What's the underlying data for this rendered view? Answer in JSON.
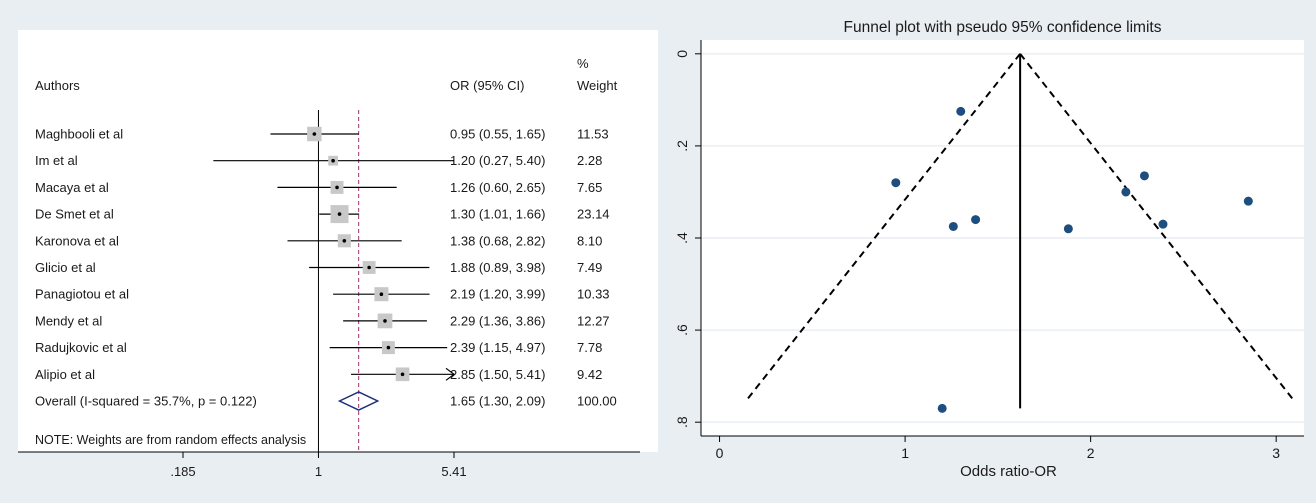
{
  "chart_data": [
    {
      "type": "forest",
      "header": {
        "authors": "Authors",
        "or_ci": "OR (95% CI)",
        "pct": "%",
        "weight": "Weight"
      },
      "studies": [
        {
          "author": "Maghbooli et al",
          "or": 0.95,
          "lo": 0.55,
          "hi": 1.65,
          "label": "0.95 (0.55, 1.65)",
          "weight": 11.53,
          "weight_label": "11.53"
        },
        {
          "author": "Im et al",
          "or": 1.2,
          "lo": 0.27,
          "hi": 5.4,
          "label": "1.20 (0.27, 5.40)",
          "weight": 2.28,
          "weight_label": "2.28"
        },
        {
          "author": "Macaya et al",
          "or": 1.26,
          "lo": 0.6,
          "hi": 2.65,
          "label": "1.26 (0.60, 2.65)",
          "weight": 7.65,
          "weight_label": "7.65"
        },
        {
          "author": "De Smet et al",
          "or": 1.3,
          "lo": 1.01,
          "hi": 1.66,
          "label": "1.30 (1.01, 1.66)",
          "weight": 23.14,
          "weight_label": "23.14"
        },
        {
          "author": "Karonova et al",
          "or": 1.38,
          "lo": 0.68,
          "hi": 2.82,
          "label": "1.38 (0.68, 2.82)",
          "weight": 8.1,
          "weight_label": "8.10"
        },
        {
          "author": "Glicio et al",
          "or": 1.88,
          "lo": 0.89,
          "hi": 3.98,
          "label": "1.88 (0.89, 3.98)",
          "weight": 7.49,
          "weight_label": "7.49"
        },
        {
          "author": "Panagiotou  et al",
          "or": 2.19,
          "lo": 1.2,
          "hi": 3.99,
          "label": "2.19 (1.20, 3.99)",
          "weight": 10.33,
          "weight_label": "10.33"
        },
        {
          "author": "Mendy et al",
          "or": 2.29,
          "lo": 1.36,
          "hi": 3.86,
          "label": "2.29 (1.36, 3.86)",
          "weight": 12.27,
          "weight_label": "12.27"
        },
        {
          "author": "Radujkovic et al",
          "or": 2.39,
          "lo": 1.15,
          "hi": 4.97,
          "label": "2.39 (1.15, 4.97)",
          "weight": 7.78,
          "weight_label": "7.78"
        },
        {
          "author": "Alipio et al",
          "or": 2.85,
          "lo": 1.5,
          "hi": 5.41,
          "label": "2.85 (1.50, 5.41)",
          "weight": 9.42,
          "weight_label": "9.42",
          "arrow_right": true
        }
      ],
      "overall": {
        "label": "Overall  (I-squared = 35.7%, p = 0.122)",
        "or": 1.65,
        "lo": 1.3,
        "hi": 2.09,
        "ci_label": "1.65 (1.30, 2.09)",
        "weight_label": "100.00"
      },
      "note": "NOTE: Weights are from random effects analysis",
      "x_scale": "log",
      "x_range": [
        0.185,
        5.41
      ],
      "x_ticks": [
        {
          "value": 0.185,
          "label": ".185"
        },
        {
          "value": 1,
          "label": "1"
        },
        {
          "value": 5.41,
          "label": "5.41"
        }
      ],
      "colors": {
        "box": "#c8c8c8",
        "diamond": "#1f2e7a",
        "overall_line": "#a0306a",
        "line": "#000000"
      }
    },
    {
      "type": "scatter",
      "title": "Funnel plot with pseudo 95% confidence limits",
      "xlabel": "Odds ratio-OR",
      "ylabel": "",
      "x_range": [
        -0.1,
        3.15
      ],
      "y_range": [
        -0.03,
        0.83
      ],
      "y_reversed": true,
      "x_ticks": [
        0,
        1,
        2,
        3
      ],
      "x_tick_labels": [
        "0",
        "1",
        "2",
        "3"
      ],
      "y_ticks": [
        0,
        0.2,
        0.4,
        0.6,
        0.8
      ],
      "y_tick_labels": [
        "0",
        ".2",
        ".4",
        ".6",
        ".8"
      ],
      "grid": true,
      "pooled_estimate": 1.62,
      "funnel_bottom_se": 0.755,
      "points": [
        {
          "x": 0.95,
          "y": 0.28
        },
        {
          "x": 1.2,
          "y": 0.77
        },
        {
          "x": 1.26,
          "y": 0.375
        },
        {
          "x": 1.3,
          "y": 0.125
        },
        {
          "x": 1.38,
          "y": 0.36
        },
        {
          "x": 1.88,
          "y": 0.38
        },
        {
          "x": 2.19,
          "y": 0.3
        },
        {
          "x": 2.29,
          "y": 0.265
        },
        {
          "x": 2.39,
          "y": 0.37
        },
        {
          "x": 2.85,
          "y": 0.32
        }
      ],
      "colors": {
        "point": "#1d4e7e",
        "line": "#000000",
        "grid": "#dde6ef",
        "background": "#ffffff"
      }
    }
  ]
}
